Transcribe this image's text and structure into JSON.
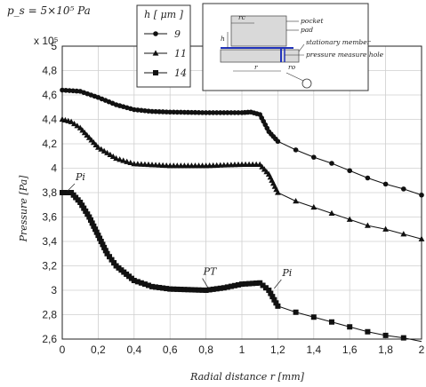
{
  "chart_data": {
    "type": "scatter",
    "condition_label": "p_s = 5×10⁵ Pa",
    "scale_label": "x 10⁵",
    "xlabel": "Radial distance r [mm]",
    "ylabel": "Pressure [Pa]",
    "xlim": [
      0,
      2
    ],
    "ylim": [
      2.6,
      5
    ],
    "xticks": [
      "0",
      "0,2",
      "0,4",
      "0,6",
      "0,8",
      "1",
      "1,2",
      "1,4",
      "1,6",
      "1,8",
      "2"
    ],
    "yticks": [
      "2,6",
      "2,8",
      "3",
      "3,2",
      "3,4",
      "3,6",
      "3,8",
      "4",
      "4,2",
      "4,4",
      "4,6",
      "4,8",
      "5"
    ],
    "legend_title": "h [ μm ]",
    "legend_position": "top-center",
    "grid": true,
    "series": [
      {
        "name": "9",
        "marker": "circle",
        "values": [
          [
            0,
            4.64
          ],
          [
            0.1,
            4.63
          ],
          [
            0.2,
            4.58
          ],
          [
            0.3,
            4.52
          ],
          [
            0.4,
            4.48
          ],
          [
            0.5,
            4.465
          ],
          [
            0.6,
            4.46
          ],
          [
            0.8,
            4.455
          ],
          [
            1.0,
            4.455
          ],
          [
            1.05,
            4.46
          ],
          [
            1.1,
            4.44
          ],
          [
            1.15,
            4.3
          ],
          [
            1.2,
            4.22
          ],
          [
            1.3,
            4.15
          ],
          [
            1.4,
            4.09
          ],
          [
            1.5,
            4.04
          ],
          [
            1.6,
            3.98
          ],
          [
            1.7,
            3.92
          ],
          [
            1.8,
            3.87
          ],
          [
            1.9,
            3.83
          ],
          [
            2.0,
            3.78
          ]
        ]
      },
      {
        "name": "11",
        "marker": "triangle",
        "values": [
          [
            0,
            4.4
          ],
          [
            0.05,
            4.38
          ],
          [
            0.1,
            4.33
          ],
          [
            0.15,
            4.25
          ],
          [
            0.2,
            4.17
          ],
          [
            0.3,
            4.08
          ],
          [
            0.4,
            4.035
          ],
          [
            0.6,
            4.02
          ],
          [
            0.8,
            4.02
          ],
          [
            1.0,
            4.03
          ],
          [
            1.1,
            4.03
          ],
          [
            1.15,
            3.95
          ],
          [
            1.2,
            3.8
          ],
          [
            1.3,
            3.73
          ],
          [
            1.4,
            3.68
          ],
          [
            1.5,
            3.63
          ],
          [
            1.6,
            3.58
          ],
          [
            1.7,
            3.53
          ],
          [
            1.8,
            3.5
          ],
          [
            1.9,
            3.46
          ],
          [
            2.0,
            3.42
          ]
        ]
      },
      {
        "name": "14",
        "marker": "square",
        "values": [
          [
            0,
            3.8
          ],
          [
            0.05,
            3.8
          ],
          [
            0.1,
            3.72
          ],
          [
            0.15,
            3.6
          ],
          [
            0.2,
            3.45
          ],
          [
            0.25,
            3.3
          ],
          [
            0.3,
            3.2
          ],
          [
            0.4,
            3.08
          ],
          [
            0.5,
            3.03
          ],
          [
            0.6,
            3.01
          ],
          [
            0.8,
            3.0
          ],
          [
            0.9,
            3.02
          ],
          [
            1.0,
            3.05
          ],
          [
            1.1,
            3.06
          ],
          [
            1.15,
            3.0
          ],
          [
            1.2,
            2.87
          ],
          [
            1.3,
            2.82
          ],
          [
            1.4,
            2.78
          ],
          [
            1.5,
            2.74
          ],
          [
            1.6,
            2.7
          ],
          [
            1.7,
            2.66
          ],
          [
            1.8,
            2.63
          ],
          [
            1.9,
            2.61
          ],
          [
            2.0,
            2.58
          ]
        ]
      }
    ],
    "annotations": [
      {
        "text": "Pi",
        "x": 0.02,
        "y": 3.8
      },
      {
        "text": "PT",
        "x": 0.8,
        "y": 3.01
      },
      {
        "text": "Pi",
        "x": 1.17,
        "y": 3.0
      }
    ],
    "inset_labels": [
      "pocket",
      "pad",
      "stationary member",
      "pressure measure hole",
      "h",
      "rc",
      "ro",
      "r"
    ]
  }
}
